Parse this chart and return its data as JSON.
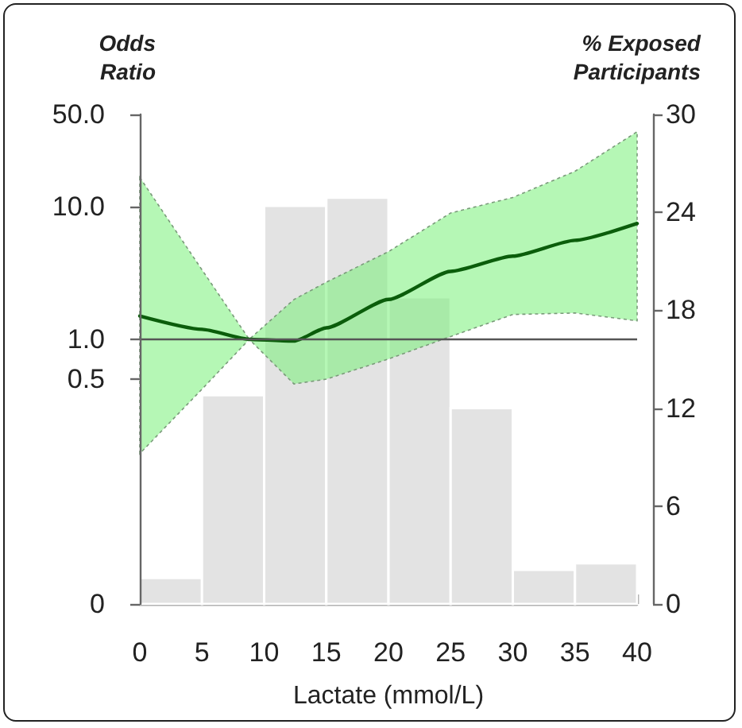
{
  "chart_data": {
    "type": "line",
    "xlabel": "Lactate (mmol/L)",
    "ylabel": "Odds Ratio",
    "y2label": "% Exposed Participants",
    "xlim": [
      0,
      40
    ],
    "xticks": [
      0,
      5,
      10,
      15,
      20,
      25,
      30,
      35,
      40
    ],
    "ylim": [
      0.01,
      50
    ],
    "yticks": [
      {
        "value": 0.01,
        "label": "0"
      },
      {
        "value": 0.5,
        "label": "0.5"
      },
      {
        "value": 1,
        "label": "1.0"
      },
      {
        "value": 10,
        "label": "10.0"
      },
      {
        "value": 50,
        "label": "50.0"
      }
    ],
    "log": "y",
    "y2lim": [
      0,
      30
    ],
    "y2ticks": [
      0,
      6,
      12,
      18,
      24,
      30
    ],
    "ref_lines": [
      {
        "axis": "y",
        "value": 1,
        "color": "#555555"
      }
    ],
    "series": [
      {
        "type": "histogram",
        "axis": "y2",
        "color": "#e3e3e3",
        "bins": [
          0,
          5,
          10,
          15,
          20,
          25,
          30,
          35,
          40
        ],
        "values": [
          1.6,
          12.8,
          24.4,
          24.9,
          18.8,
          12.0,
          2.1,
          2.5
        ]
      },
      {
        "color": "#0b5d0b",
        "x": [
          0,
          5,
          8.8,
          12.4,
          15,
          20,
          25,
          30,
          35,
          40
        ],
        "values": [
          1.5,
          1.19,
          1.0,
          0.97,
          1.22,
          2.0,
          3.26,
          4.25,
          5.6,
          7.5
        ],
        "lower": [
          0.137,
          0.42,
          1.0,
          0.46,
          0.5,
          0.71,
          1.05,
          1.54,
          1.58,
          1.38
        ],
        "upper": [
          16.7,
          3.35,
          1.0,
          2.0,
          2.7,
          4.6,
          9.0,
          11.8,
          18.6,
          37
        ]
      }
    ]
  }
}
